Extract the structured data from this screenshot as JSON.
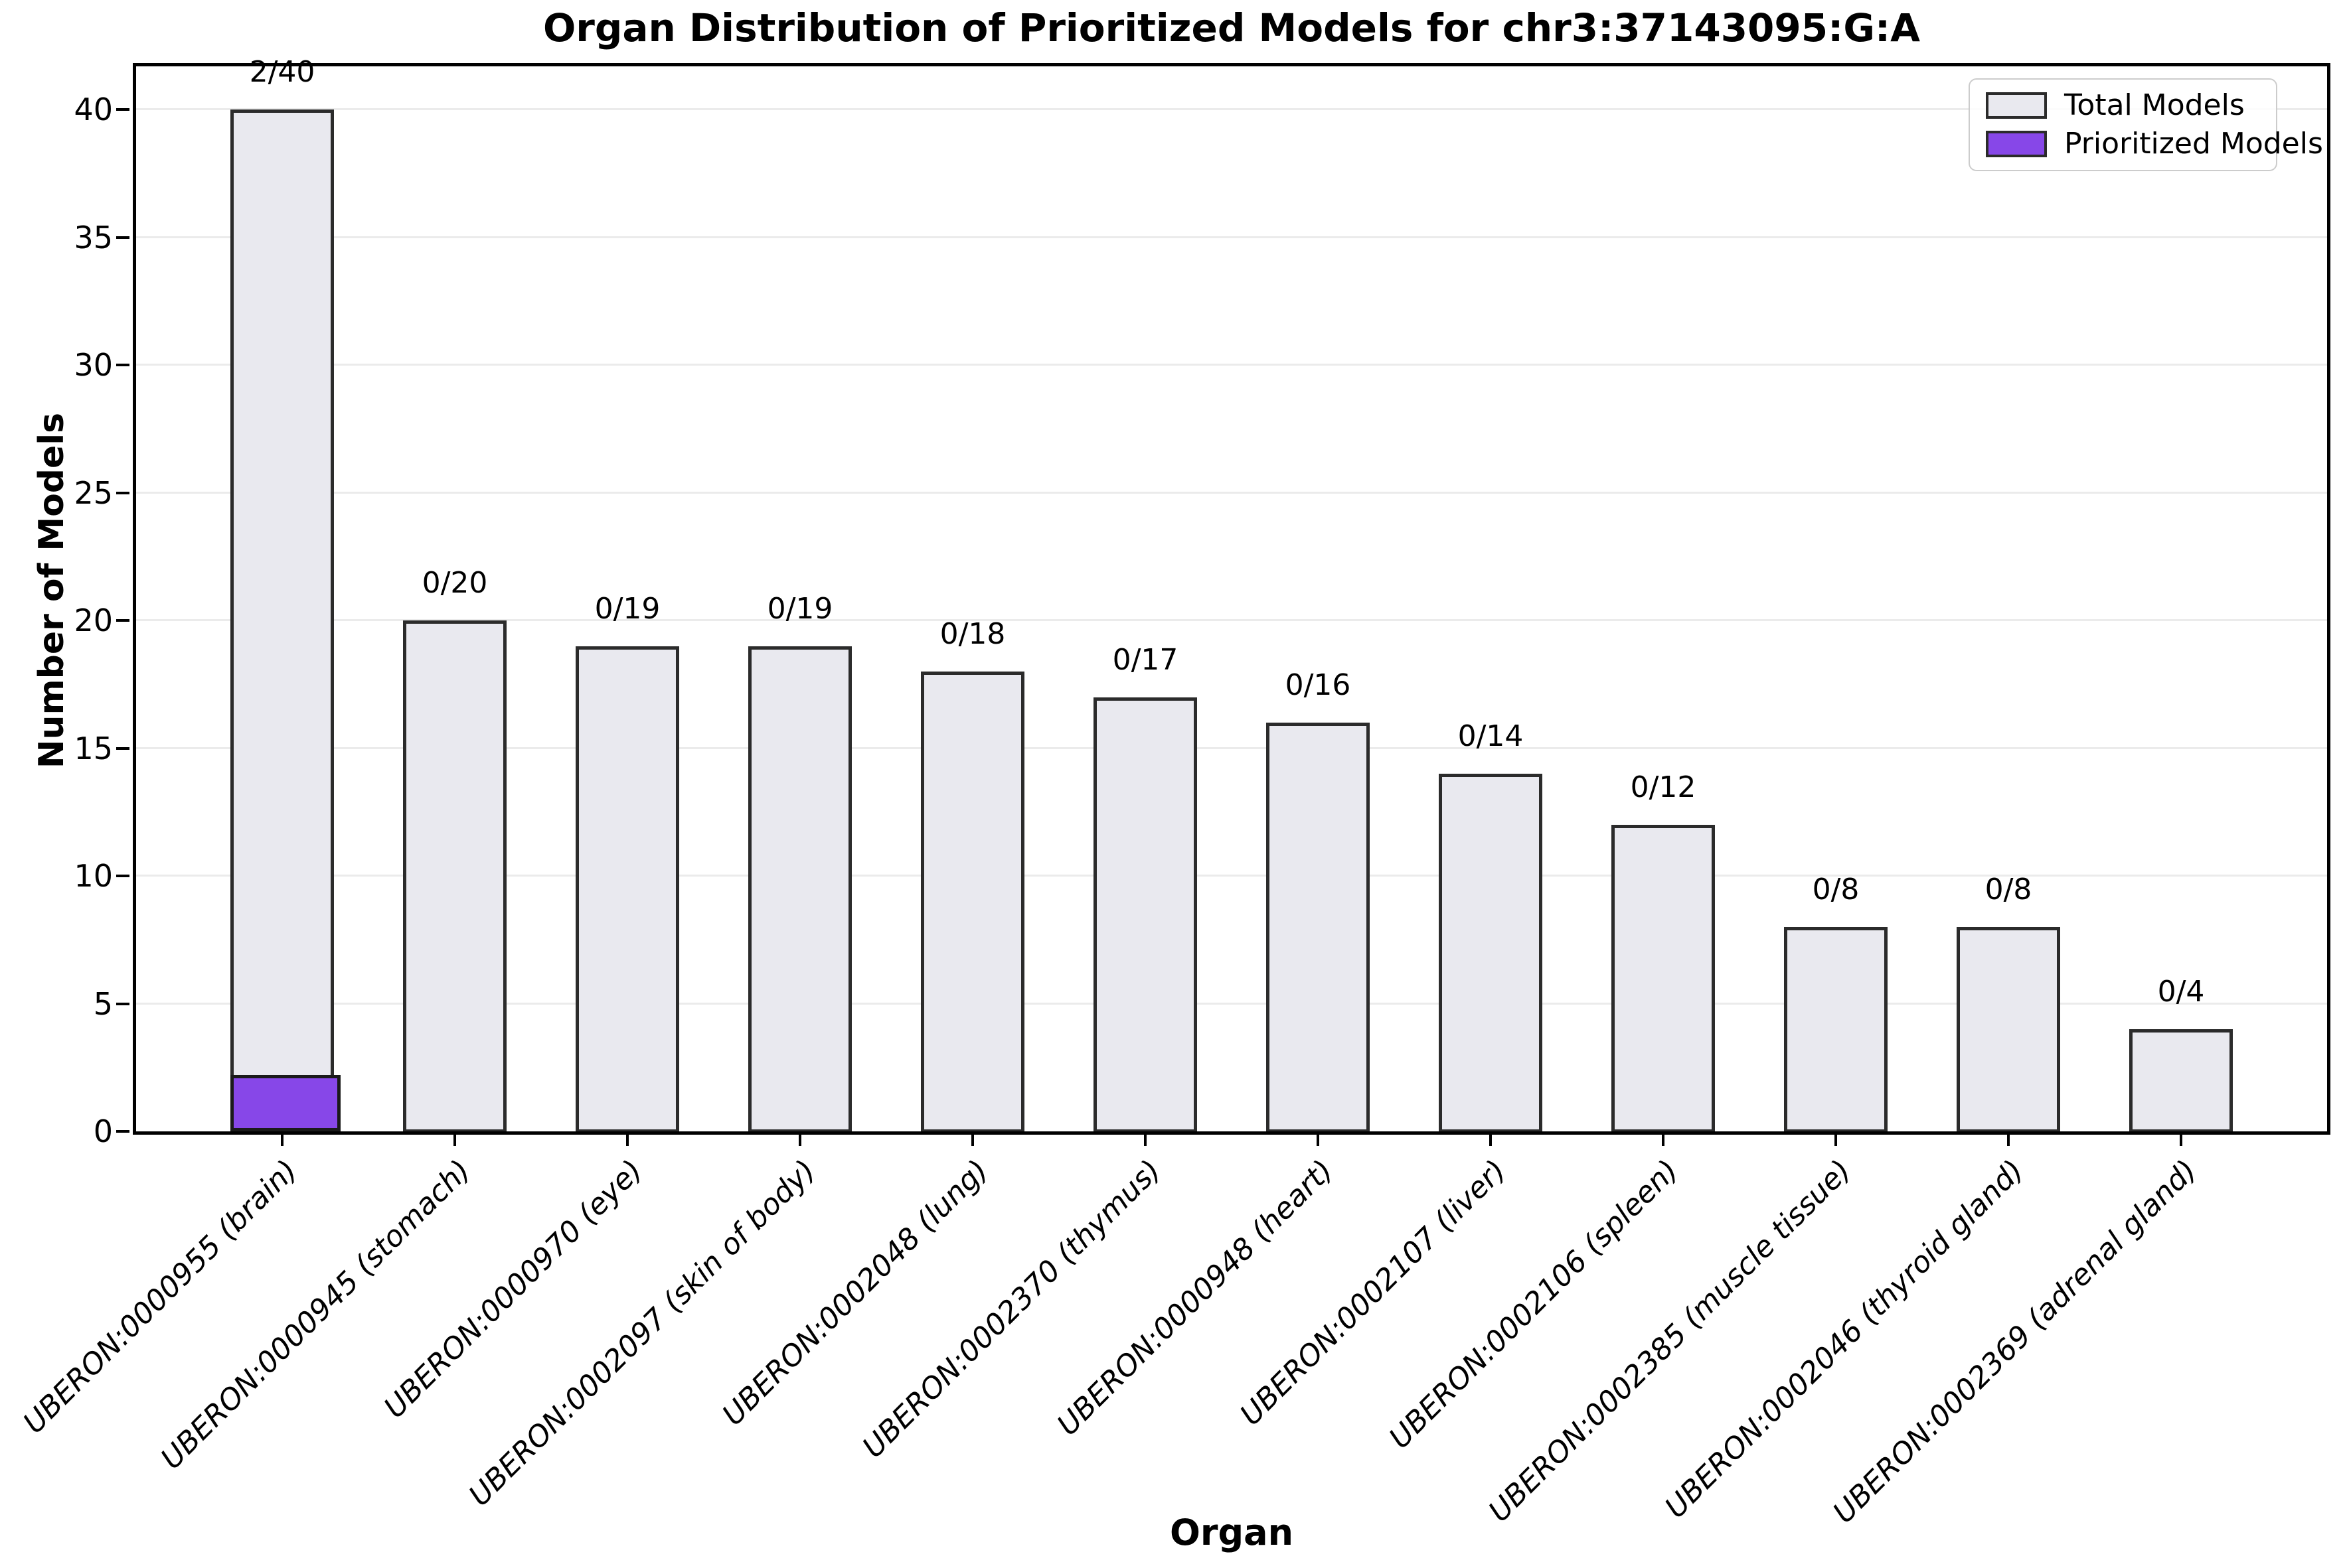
{
  "chart_data": {
    "type": "bar",
    "title": "Organ Distribution of Prioritized Models for chr3:37143095:G:A",
    "xlabel": "Organ",
    "ylabel": "Number of Models",
    "ylim": [
      0,
      41.8
    ],
    "yticks": [
      0,
      5,
      10,
      15,
      20,
      25,
      30,
      35,
      40
    ],
    "grid": "horizontal",
    "legend_position": "upper-right",
    "categories": [
      "UBERON:0000955 (brain)",
      "UBERON:0000945 (stomach)",
      "UBERON:0000970 (eye)",
      "UBERON:0002097 (skin of body)",
      "UBERON:0002048 (lung)",
      "UBERON:0002370 (thymus)",
      "UBERON:0000948 (heart)",
      "UBERON:0002107 (liver)",
      "UBERON:0002106 (spleen)",
      "UBERON:0002385 (muscle tissue)",
      "UBERON:0002046 (thyroid gland)",
      "UBERON:0002369 (adrenal gland)"
    ],
    "series": [
      {
        "name": "Total Models",
        "color": "#e9e9ef",
        "edge_color": "#2b2b2b",
        "values": [
          40,
          20,
          19,
          19,
          18,
          17,
          16,
          14,
          12,
          8,
          8,
          4
        ]
      },
      {
        "name": "Prioritized Models",
        "color": "#8747e8",
        "edge_color": "#1a1a1a",
        "values": [
          2,
          0,
          0,
          0,
          0,
          0,
          0,
          0,
          0,
          0,
          0,
          0
        ]
      }
    ],
    "bar_labels": [
      "2/40",
      "0/20",
      "0/19",
      "0/19",
      "0/18",
      "0/17",
      "0/16",
      "0/14",
      "0/12",
      "0/8",
      "0/8",
      "0/4"
    ]
  }
}
